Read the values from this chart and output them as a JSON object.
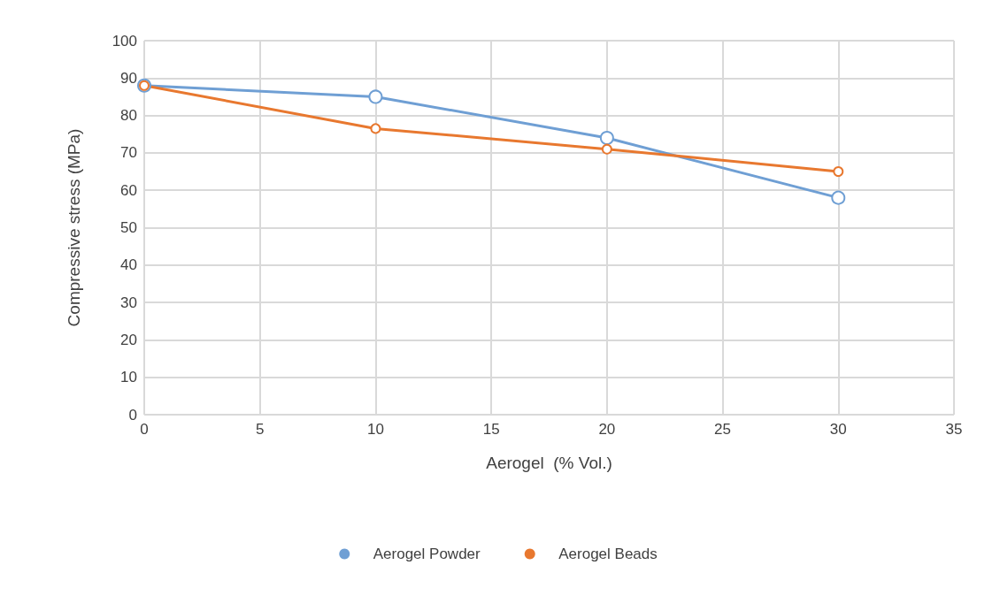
{
  "chart_data": {
    "type": "line",
    "xlabel": "Aerogel  (% Vol.)",
    "ylabel": "Compressive stress (MPa)",
    "x": [
      0,
      10,
      20,
      30
    ],
    "series": [
      {
        "name": "Aerogel Powder",
        "color": "#6f9fd4",
        "values": [
          88,
          85,
          74,
          58
        ]
      },
      {
        "name": "Aerogel Beads",
        "color": "#e8782f",
        "values": [
          88,
          76.5,
          71,
          65
        ]
      }
    ],
    "xlim": [
      0,
      35
    ],
    "xticks": [
      0,
      5,
      10,
      15,
      20,
      25,
      30,
      35
    ],
    "ylim": [
      0,
      100
    ],
    "yticks": [
      0,
      10,
      20,
      30,
      40,
      50,
      60,
      70,
      80,
      90,
      100
    ],
    "grid": true,
    "legend": "bottom",
    "marker": "circle",
    "line_style": "solid"
  }
}
